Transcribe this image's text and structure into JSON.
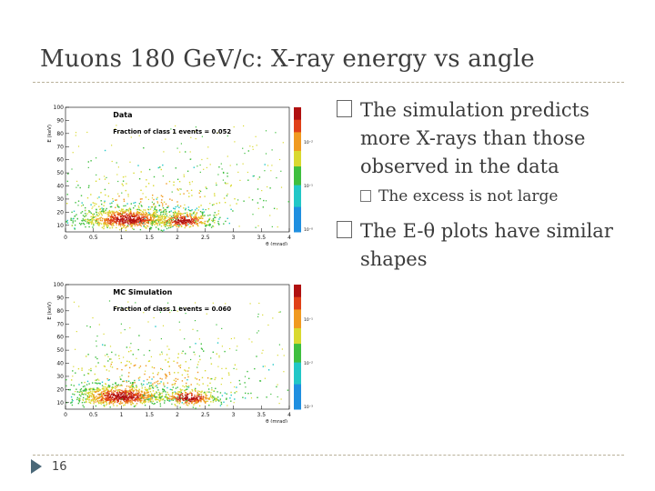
{
  "slide": {
    "title": "Muons 180 GeV/c: X-ray energy vs angle",
    "page_number": "16",
    "bullets": [
      {
        "text": "The simulation predicts more X-rays than those observed in the data",
        "sub": [
          "The excess is not large"
        ]
      },
      {
        "text": "The E-θ plots have similar shapes",
        "sub": []
      }
    ]
  },
  "chart_data": [
    {
      "type": "heatmap",
      "title": "Data",
      "annotation": "Fraction of class 1 events = 0.052",
      "xlabel": "θ (mrad)",
      "ylabel": "E (keV)",
      "xlim": [
        0,
        4
      ],
      "ylim": [
        5,
        100
      ],
      "xticks": [
        "0",
        "0.5",
        "1",
        "1.5",
        "2",
        "2.5",
        "3",
        "3.5",
        "4"
      ],
      "yticks": [
        "10",
        "20",
        "30",
        "40",
        "50",
        "60",
        "70",
        "80",
        "90",
        "100"
      ],
      "colorbar_ticks": [
        "10⁻²",
        "10⁻¹",
        "10⁻⁰",
        "10⁻³"
      ],
      "clusters": [
        {
          "x": 1.1,
          "y": 15,
          "sx": 0.45,
          "sy": 5,
          "weight": 0.6
        },
        {
          "x": 2.1,
          "y": 14,
          "sx": 0.3,
          "sy": 4,
          "weight": 0.25
        },
        {
          "x": 1.6,
          "y": 30,
          "sx": 1.2,
          "sy": 15,
          "weight": 0.15
        }
      ]
    },
    {
      "type": "heatmap",
      "title": "MC Simulation",
      "annotation": "Fraction of class 1 events = 0.060",
      "xlabel": "θ (mrad)",
      "ylabel": "E (keV)",
      "xlim": [
        0,
        4
      ],
      "ylim": [
        5,
        100
      ],
      "xticks": [
        "0",
        "0.5",
        "1",
        "1.5",
        "2",
        "2.5",
        "3",
        "3.5",
        "4"
      ],
      "yticks": [
        "10",
        "20",
        "30",
        "40",
        "50",
        "60",
        "70",
        "80",
        "90",
        "100"
      ],
      "colorbar_ticks": [
        "10⁻¹",
        "10⁻²",
        "10⁻³"
      ],
      "clusters": [
        {
          "x": 1.0,
          "y": 15,
          "sx": 0.45,
          "sy": 5,
          "weight": 0.6
        },
        {
          "x": 2.2,
          "y": 14,
          "sx": 0.3,
          "sy": 4,
          "weight": 0.22
        },
        {
          "x": 1.5,
          "y": 30,
          "sx": 1.2,
          "sy": 15,
          "weight": 0.18
        }
      ]
    }
  ]
}
